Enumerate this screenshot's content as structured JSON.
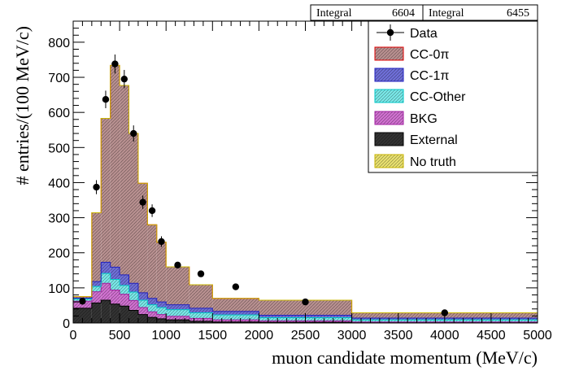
{
  "chart_data": {
    "type": "stacked-histogram",
    "xlabel": "muon candidate momentum (MeV/c)",
    "ylabel": "# entries/(100 MeV/c)",
    "xlim": [
      0,
      5000
    ],
    "ylim": [
      0,
      860
    ],
    "x_ticks": [
      "0",
      "500",
      "1000",
      "1500",
      "2000",
      "2500",
      "3000",
      "3500",
      "4000",
      "4500",
      "5000"
    ],
    "y_ticks": [
      "0",
      "100",
      "200",
      "300",
      "400",
      "500",
      "600",
      "700",
      "800"
    ],
    "stats": [
      {
        "label": "Integral",
        "value": "6604"
      },
      {
        "label": "Integral",
        "value": "6455"
      }
    ],
    "bin_edges": [
      0,
      200,
      300,
      400,
      500,
      600,
      700,
      800,
      900,
      1000,
      1250,
      1500,
      2000,
      3000,
      5000
    ],
    "series": [
      {
        "name": "External",
        "values": [
          42,
          57,
          65,
          54,
          48,
          36,
          24,
          16,
          12,
          9,
          5,
          3,
          2,
          1
        ],
        "color": "#333333"
      },
      {
        "name": "BKG",
        "values": [
          20,
          32,
          48,
          40,
          34,
          28,
          20,
          16,
          12,
          10,
          8,
          6,
          4,
          2
        ],
        "color": "#d070d0"
      },
      {
        "name": "CC-Other",
        "values": [
          6,
          15,
          28,
          30,
          25,
          24,
          21,
          20,
          20,
          19,
          16,
          14,
          9,
          6
        ],
        "color": "#7ae8e8"
      },
      {
        "name": "CC-1π",
        "values": [
          3,
          14,
          32,
          35,
          30,
          25,
          21,
          18,
          16,
          14,
          13,
          10,
          7,
          5
        ],
        "color": "#6f6fd8"
      },
      {
        "name": "CC-0π",
        "values": [
          4,
          196,
          410,
          575,
          540,
          427,
          312,
          210,
          170,
          108,
          67,
          37,
          43,
          15
        ],
        "color": "#b89090"
      },
      {
        "name": "No truth",
        "values": [
          0,
          0,
          0,
          0,
          0,
          0,
          0,
          0,
          0,
          0,
          0,
          0,
          0,
          0
        ],
        "color": "#e8e070"
      }
    ],
    "data_points": [
      {
        "x": 100,
        "y": 62,
        "err": 8
      },
      {
        "x": 250,
        "y": 387,
        "err": 20
      },
      {
        "x": 350,
        "y": 637,
        "err": 25
      },
      {
        "x": 450,
        "y": 738,
        "err": 27
      },
      {
        "x": 550,
        "y": 695,
        "err": 26
      },
      {
        "x": 650,
        "y": 540,
        "err": 23
      },
      {
        "x": 750,
        "y": 344,
        "err": 19
      },
      {
        "x": 850,
        "y": 320,
        "err": 18
      },
      {
        "x": 950,
        "y": 232,
        "err": 15
      },
      {
        "x": 1125,
        "y": 165,
        "err": 8
      },
      {
        "x": 1375,
        "y": 140,
        "err": 7
      },
      {
        "x": 1750,
        "y": 103,
        "err": 5
      },
      {
        "x": 2500,
        "y": 60,
        "err": 3
      },
      {
        "x": 4000,
        "y": 29,
        "err": 2
      }
    ],
    "legend": {
      "entries": [
        "Data",
        "CC-0π",
        "CC-1π",
        "CC-Other",
        "BKG",
        "External",
        "No truth"
      ],
      "placement": "top-right"
    }
  }
}
